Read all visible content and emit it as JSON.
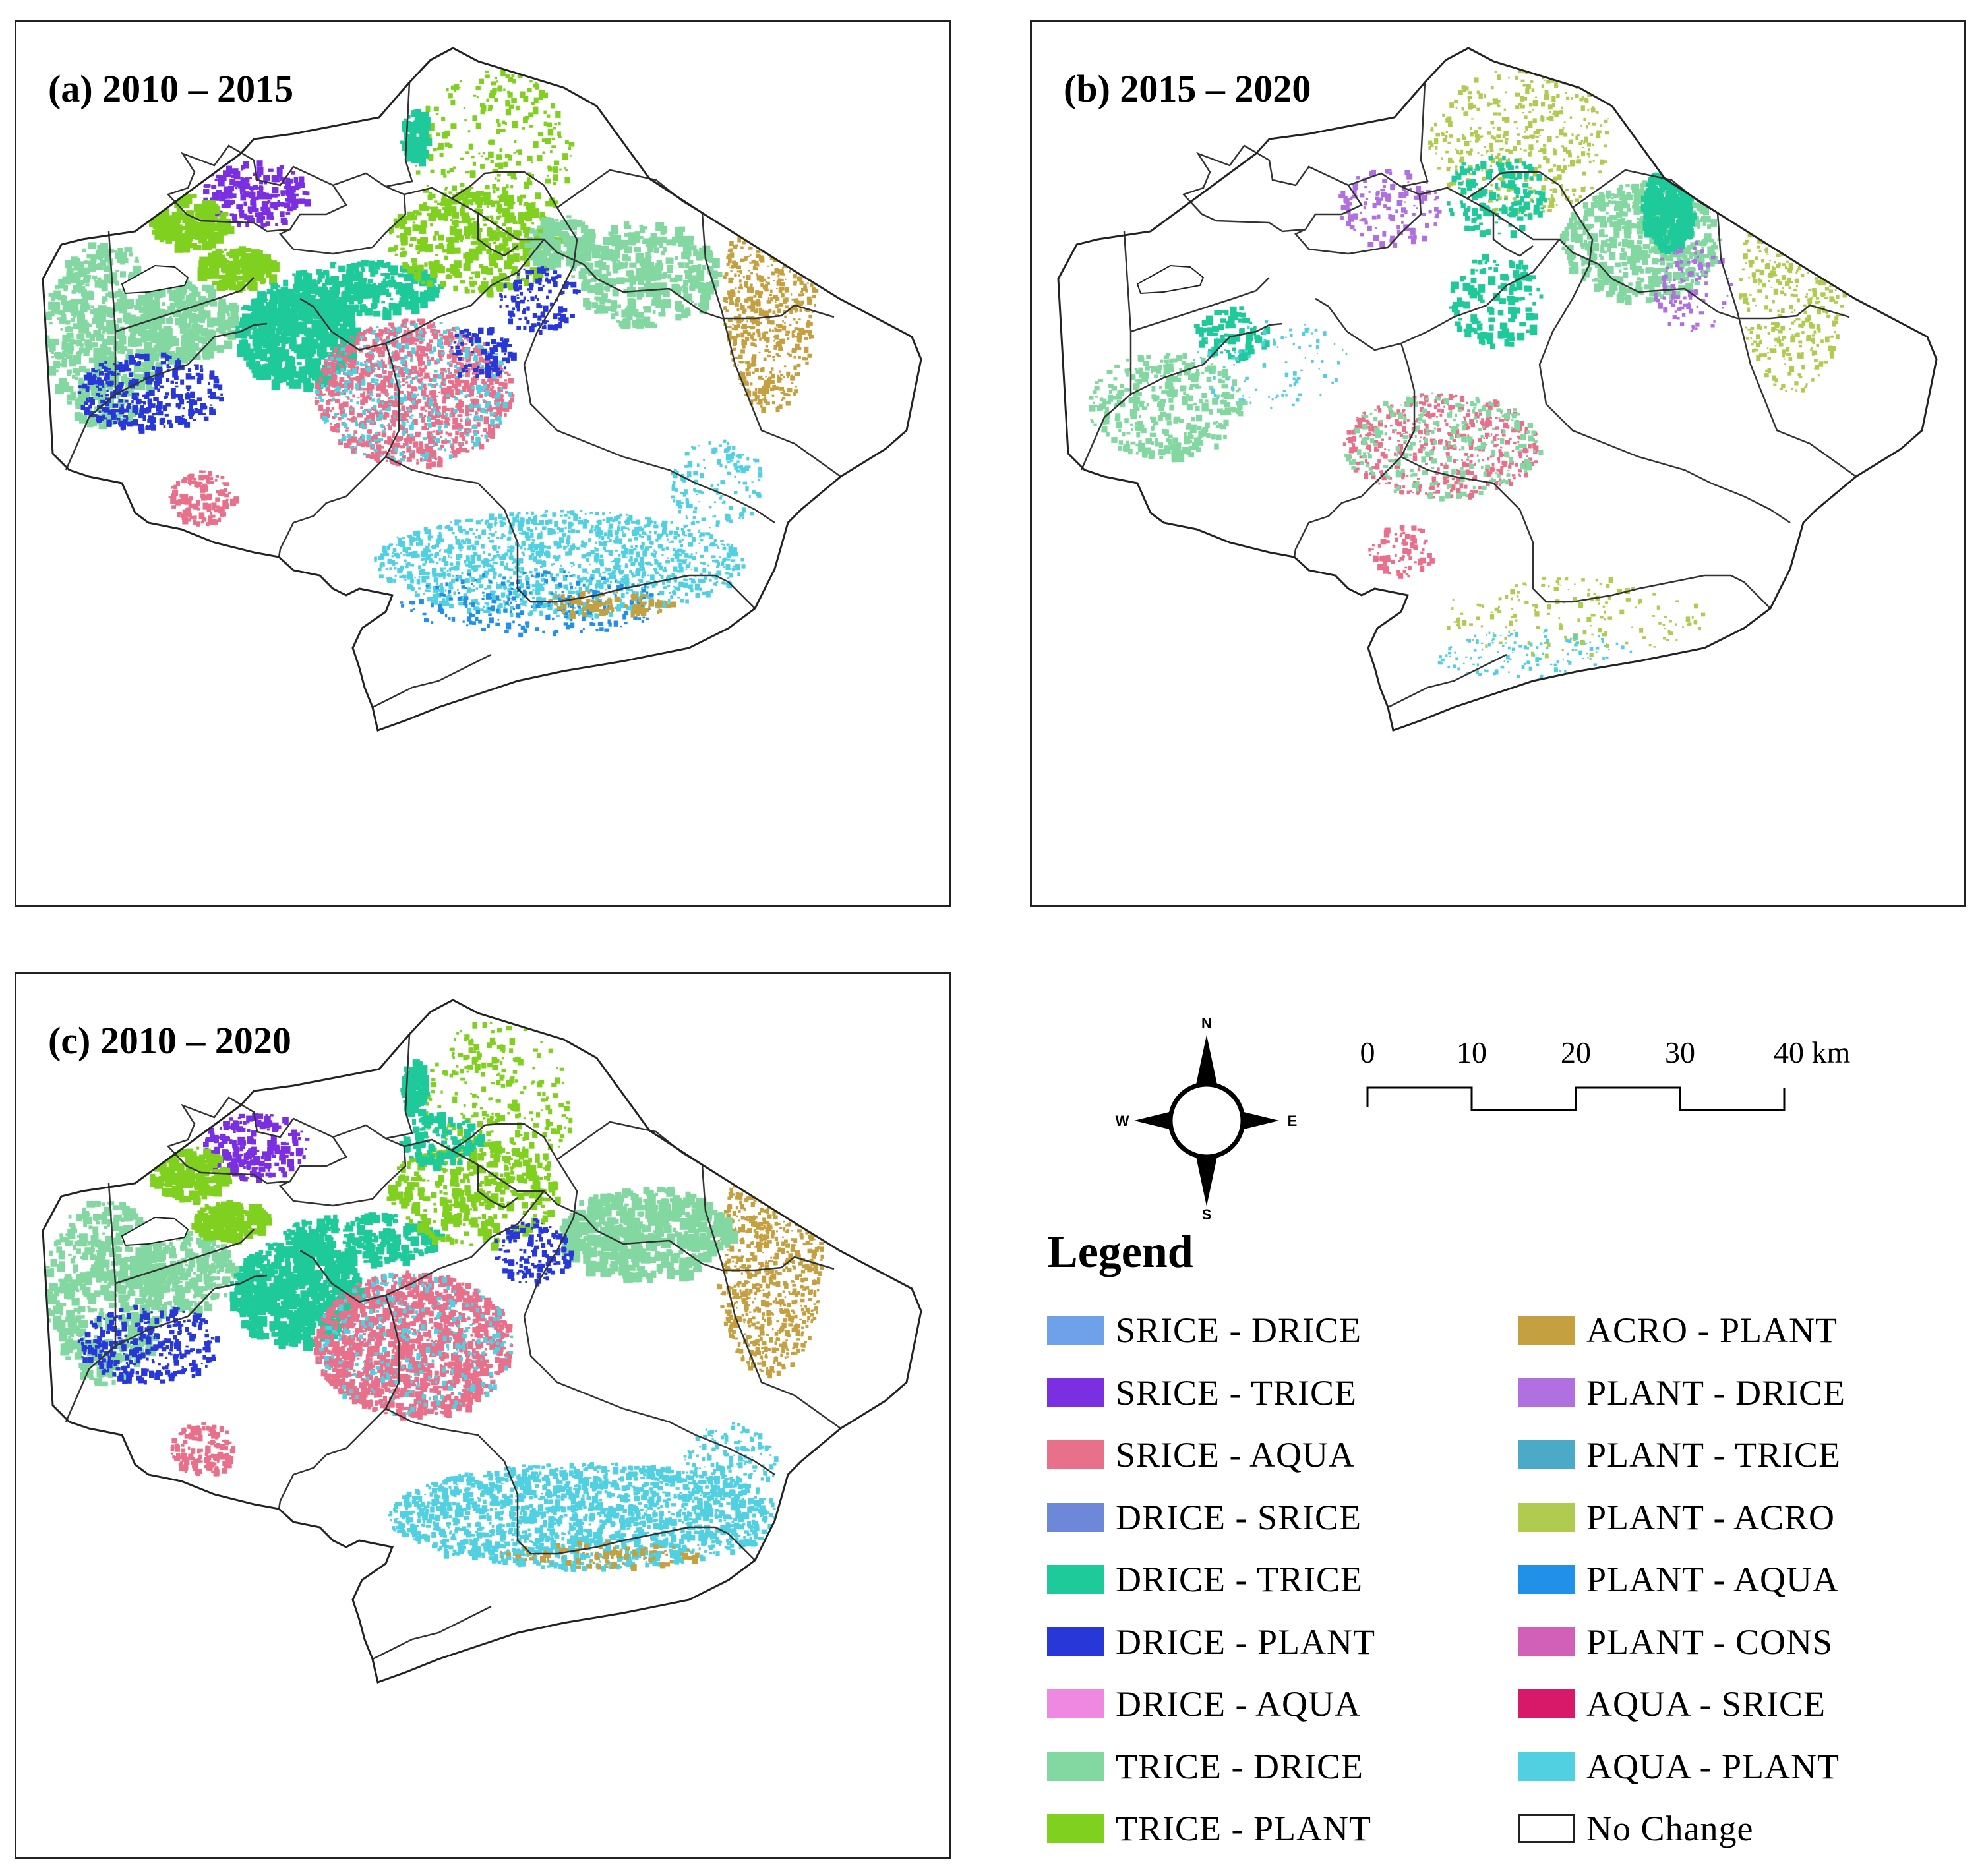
{
  "panels": [
    {
      "id": "a",
      "title": "(a) 2010 – 2015"
    },
    {
      "id": "b",
      "title": "(b) 2015 – 2020"
    },
    {
      "id": "c",
      "title": "(c) 2010 – 2020"
    }
  ],
  "compass": {
    "n": "N",
    "s": "S",
    "w": "W",
    "e": "E"
  },
  "scale": {
    "ticks": [
      "0",
      "10",
      "20",
      "30"
    ],
    "last": "40 km"
  },
  "legend": {
    "title": "Legend",
    "items": [
      {
        "label": "SRICE - DRICE",
        "color": "#6fa0ea"
      },
      {
        "label": "SRICE - TRICE",
        "color": "#7a2fe0"
      },
      {
        "label": "SRICE - AQUA",
        "color": "#e8708a"
      },
      {
        "label": "DRICE - SRICE",
        "color": "#6d88d8"
      },
      {
        "label": "DRICE - TRICE",
        "color": "#1ec99a"
      },
      {
        "label": "DRICE - PLANT",
        "color": "#2838d8"
      },
      {
        "label": "DRICE - AQUA",
        "color": "#ee88e0"
      },
      {
        "label": "TRICE - DRICE",
        "color": "#82d8a0"
      },
      {
        "label": "TRICE - PLANT",
        "color": "#80d020"
      },
      {
        "label": "ACRO - PLANT",
        "color": "#c4a040"
      },
      {
        "label": "PLANT - DRICE",
        "color": "#b070e0"
      },
      {
        "label": "PLANT - TRICE",
        "color": "#4aaac8"
      },
      {
        "label": "PLANT - ACRO",
        "color": "#b0cc50"
      },
      {
        "label": "PLANT - AQUA",
        "color": "#2090e8"
      },
      {
        "label": "PLANT - CONS",
        "color": "#d060b8"
      },
      {
        "label": "AQUA - SRICE",
        "color": "#d81868"
      },
      {
        "label": "AQUA - PLANT",
        "color": "#50d0e0"
      },
      {
        "label": "No Change",
        "color": "#ffffff"
      }
    ]
  }
}
